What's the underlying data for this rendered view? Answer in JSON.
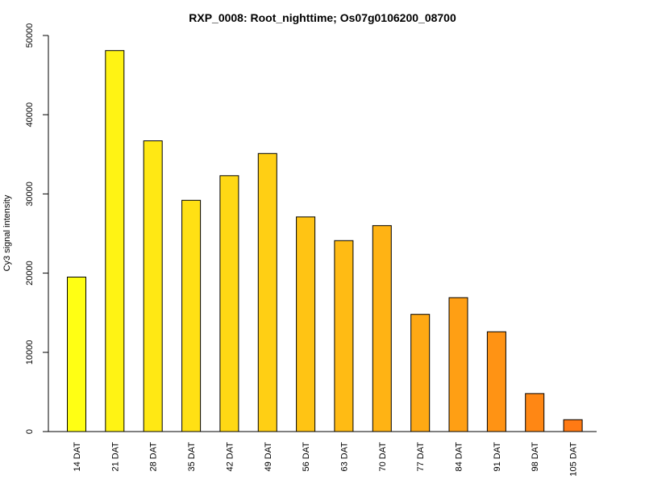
{
  "chart_data": {
    "type": "bar",
    "title": "RXP_0008: Root_nighttime; Os07g0106200_08700",
    "xlabel": "",
    "ylabel": "Cy3 signal intensity",
    "ylim": [
      0,
      50000
    ],
    "yticks": [
      0,
      10000,
      20000,
      30000,
      40000,
      50000
    ],
    "categories": [
      "14 DAT",
      "21 DAT",
      "28 DAT",
      "35 DAT",
      "42 DAT",
      "49 DAT",
      "56 DAT",
      "63 DAT",
      "70 DAT",
      "77 DAT",
      "84 DAT",
      "91 DAT",
      "98 DAT",
      "105 DAT"
    ],
    "values": [
      19500,
      48100,
      36700,
      29200,
      32300,
      35100,
      27100,
      24100,
      26000,
      14800,
      16900,
      12600,
      4800,
      1500
    ],
    "colors": [
      "#ffff14",
      "#fff314",
      "#ffe814",
      "#ffe014",
      "#ffd814",
      "#ffcf14",
      "#ffc414",
      "#ffbb14",
      "#ffb314",
      "#ffa914",
      "#ff9f14",
      "#ff9314",
      "#ff8714",
      "#ff7a14"
    ],
    "grid": false,
    "legend": "none"
  }
}
